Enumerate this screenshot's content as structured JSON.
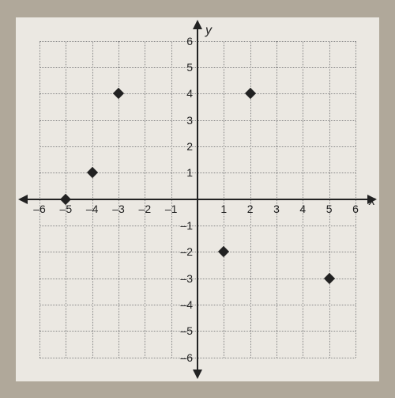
{
  "chart": {
    "type": "scatter",
    "background_color": "#ebe8e2",
    "outer_background": "#b0a89a",
    "grid_color": "#888888",
    "axis_color": "#222222",
    "point_color": "#222222",
    "label_color": "#222222",
    "xlabel": "x",
    "ylabel": "y",
    "label_fontsize": 16,
    "tick_fontsize": 14,
    "xlim": [
      -6,
      6
    ],
    "ylim": [
      -6,
      6
    ],
    "tick_step": 1,
    "xticks": [
      -6,
      -5,
      -4,
      -3,
      -2,
      -1,
      1,
      2,
      3,
      4,
      5,
      6
    ],
    "yticks": [
      -6,
      -5,
      -4,
      -3,
      -2,
      -1,
      1,
      2,
      3,
      4,
      5,
      6
    ],
    "xtick_labels": [
      "–6",
      "–5",
      "–4",
      "–3",
      "–2",
      "–1",
      "1",
      "2",
      "3",
      "4",
      "5",
      "6"
    ],
    "ytick_labels": [
      "–6",
      "–5",
      "–4",
      "–3",
      "–2",
      "–1",
      "1",
      "2",
      "3",
      "4",
      "5",
      "6"
    ],
    "grid_style": "dotted",
    "marker_style": "diamond",
    "marker_size": 10,
    "points": [
      {
        "x": -5,
        "y": 0
      },
      {
        "x": -4,
        "y": 1
      },
      {
        "x": -3,
        "y": 4
      },
      {
        "x": 2,
        "y": 4
      },
      {
        "x": 1,
        "y": -2
      },
      {
        "x": 5,
        "y": -3
      }
    ]
  }
}
